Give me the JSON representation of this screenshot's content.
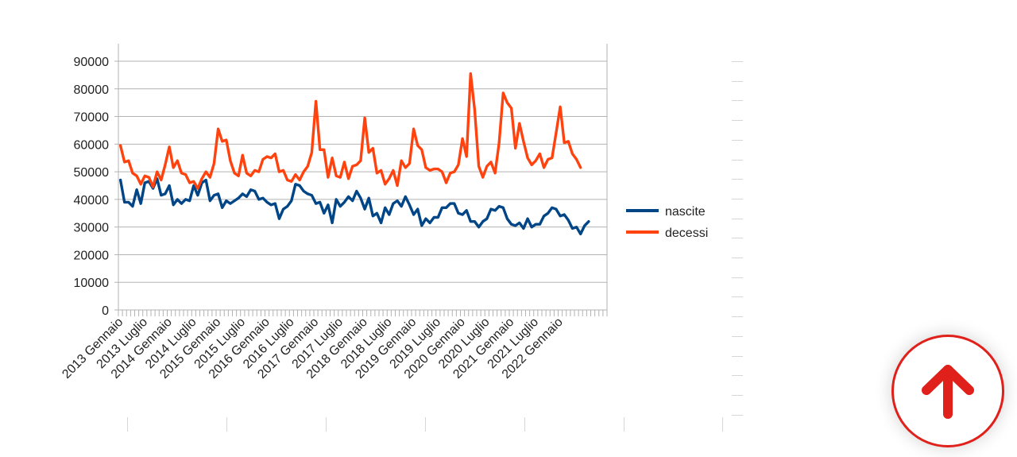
{
  "chart_data": {
    "type": "line",
    "y_ticks": [
      "0",
      "10000",
      "20000",
      "30000",
      "40000",
      "50000",
      "60000",
      "70000",
      "80000",
      "90000"
    ],
    "ylim": [
      0,
      90000
    ],
    "x_labels": [
      "2013 Gennaio",
      "2013 Luglio",
      "2014 Gennaio",
      "2014 Luglio",
      "2015 Gennaio",
      "2015 Luglio",
      "2016 Gennaio",
      "2016 Luglio",
      "2017 Gennaio",
      "2017 Luglio",
      "2018 Gennaio",
      "2018 Luglio",
      "2019 Gennaio",
      "2019 Luglio",
      "2020 Gennaio",
      "2020 Luglio",
      "2021 Gennaio",
      "2021 Luglio",
      "2022 Gennaio"
    ],
    "x_count": 120,
    "grid": "horizontal",
    "legend_position": "right",
    "series": [
      {
        "name": "nascite",
        "color": "#004586",
        "values": [
          47000,
          39000,
          39000,
          37500,
          43500,
          38500,
          46000,
          46500,
          44000,
          47500,
          41500,
          42000,
          45000,
          38000,
          40000,
          38500,
          40000,
          39500,
          45000,
          41500,
          46000,
          47000,
          39500,
          41500,
          42000,
          37000,
          39500,
          38500,
          39500,
          40500,
          42000,
          41000,
          43500,
          43000,
          40000,
          40500,
          39000,
          38000,
          38500,
          33000,
          36500,
          37500,
          39500,
          45500,
          45000,
          43000,
          42000,
          41500,
          38500,
          39000,
          35000,
          38000,
          31500,
          40000,
          37500,
          39000,
          41000,
          39500,
          43000,
          40500,
          36500,
          40500,
          34000,
          35000,
          31500,
          37000,
          34500,
          38500,
          39500,
          37500,
          41000,
          38000,
          34500,
          36500,
          30500,
          33000,
          31500,
          33500,
          33500,
          37000,
          37000,
          38500,
          38500,
          35000,
          34500,
          36000,
          32000,
          32000,
          30000,
          32000,
          33000,
          36500,
          36000,
          37500,
          37000,
          33000,
          31000,
          30500,
          31500,
          29500,
          33000,
          30000,
          31000,
          31000,
          34000,
          35000,
          37000,
          36500,
          34000,
          34500,
          32500,
          29500,
          30000,
          27500,
          30500,
          32000
        ],
        "display_values": [
          47000,
          39000,
          39000,
          37500,
          43500,
          38500,
          46000,
          46500,
          44000,
          47500,
          41500,
          42000,
          45000,
          38000,
          40000,
          38500,
          40000,
          39500,
          45000,
          41500,
          46000,
          47000,
          39500,
          41500,
          42000,
          37000,
          39500,
          38500,
          39500,
          40500,
          42000,
          41000,
          43500,
          43000,
          40000,
          40500,
          39000,
          38000,
          38500,
          33000,
          36500,
          37500,
          39500,
          45500,
          45000,
          43000,
          42000,
          41500,
          38500,
          39000,
          35000,
          38000,
          31500,
          40000,
          37500,
          39000,
          41000,
          39500,
          43000,
          40500,
          36500,
          40500,
          34000,
          35000,
          31500,
          37000,
          34500,
          38500,
          39500,
          37500,
          41000,
          38000,
          34500,
          36500,
          30500,
          33000,
          31500,
          33500,
          33500,
          37000,
          37000,
          38500,
          38500,
          35000,
          34500,
          36000,
          32000,
          32000,
          30000,
          32000,
          33000,
          36500,
          36000,
          37500,
          37000,
          33000,
          31000,
          30500,
          31500,
          29500,
          33000,
          30000,
          31000,
          31000,
          34000,
          35000,
          37000,
          36500,
          34000,
          34500,
          32500,
          29500,
          30000,
          27500,
          30500,
          32000
        ]
      },
      {
        "name": "decessi",
        "color": "#ff420e",
        "values": [
          59500,
          53500,
          54000,
          49500,
          48500,
          45500,
          48500,
          48000,
          44500,
          50000,
          47000,
          52500,
          59000,
          51500,
          54000,
          49500,
          49000,
          46000,
          46500,
          44000,
          47500,
          50000,
          48000,
          53000,
          65500,
          61000,
          61500,
          54000,
          49500,
          48500,
          56000,
          49500,
          48500,
          50500,
          50000,
          54500,
          55500,
          55000,
          56500,
          50000,
          50500,
          47000,
          46500,
          49000,
          47000,
          50000,
          52000,
          57000,
          75500,
          58000,
          58000,
          48000,
          55000,
          48500,
          48000,
          53500,
          47500,
          52000,
          52500,
          54000,
          69500,
          57000,
          58500,
          49500,
          50500,
          45500,
          47500,
          50500,
          45000,
          54000,
          51500,
          53000,
          65500,
          59500,
          58000,
          51500,
          50500,
          51000,
          51000,
          50000,
          46000,
          49500,
          50000,
          52500,
          62000,
          55500,
          85500,
          72500,
          52000,
          48000,
          52000,
          53500,
          49500,
          60500,
          78500,
          75000,
          73000,
          58500,
          67500,
          61000,
          55000,
          52500,
          54000,
          56500,
          51500,
          54500,
          55000,
          64000,
          73500,
          60500,
          61000,
          56500,
          54500,
          51500
        ],
        "display_values": [
          59500,
          53500,
          54000,
          49500,
          48500,
          45500,
          48500,
          48000,
          44500,
          50000,
          47000,
          52500,
          59000,
          51500,
          54000,
          49500,
          49000,
          46000,
          46500,
          44000,
          47500,
          50000,
          48000,
          53000,
          65500,
          61000,
          61500,
          54000,
          49500,
          48500,
          56000,
          49500,
          48500,
          50500,
          50000,
          54500,
          55500,
          55000,
          56500,
          50000,
          50500,
          47000,
          46500,
          49000,
          47000,
          50000,
          52000,
          57000,
          75500,
          58000,
          58000,
          48000,
          55000,
          48500,
          48000,
          53500,
          47500,
          52000,
          52500,
          54000,
          69500,
          57000,
          58500,
          49500,
          50500,
          45500,
          47500,
          50500,
          45000,
          54000,
          51500,
          53000,
          65500,
          59500,
          58000,
          51500,
          50500,
          51000,
          51000,
          50000,
          46000,
          49500,
          50000,
          52500,
          62000,
          55500,
          85500,
          72500,
          52000,
          48000,
          52000,
          53500,
          49500,
          60500,
          78500,
          75000,
          73000,
          58500,
          67500,
          61000,
          55000,
          52500,
          54000,
          56500,
          51500,
          54500,
          55000,
          64000,
          73500,
          60500,
          61000,
          56500,
          54500,
          51500
        ]
      }
    ]
  },
  "scroll_top": {
    "icon": "arrow-up-icon",
    "color": "#e0201a"
  }
}
